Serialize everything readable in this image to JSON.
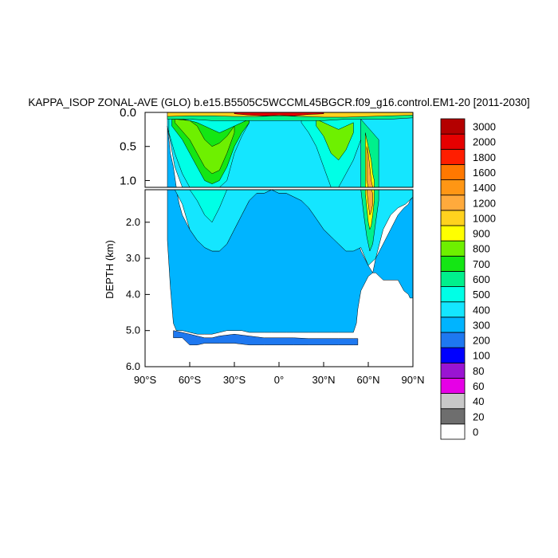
{
  "chart_data": {
    "type": "heatmap",
    "title": "KAPPA_ISOP ZONAL-AVE (GLO) b.e15.B5505C5WCCML45BGCR.f09_g16.control.EM1-20 [2011-2030]",
    "xlabel": "",
    "ylabel": "DEPTH (km)",
    "x_ticks": [
      "90°S",
      "60°S",
      "30°S",
      "0°",
      "30°N",
      "60°N",
      "90°N"
    ],
    "x_tick_values": [
      -90,
      -60,
      -30,
      0,
      30,
      60,
      90
    ],
    "xlim": [
      -90,
      90
    ],
    "y_ticks_upper": [
      "0.0",
      "0.5",
      "1.0"
    ],
    "y_tick_values_upper": [
      0.0,
      0.5,
      1.0
    ],
    "y_ticks_lower": [
      "2.0",
      "3.0",
      "4.0",
      "5.0",
      "6.0"
    ],
    "y_tick_values_lower": [
      2.0,
      3.0,
      4.0,
      5.0,
      6.0
    ],
    "ylim_upper": [
      1.1,
      0.0
    ],
    "ylim_lower": [
      6.0,
      1.1
    ],
    "contour_levels": [
      "0",
      "20",
      "40",
      "60",
      "80",
      "100",
      "200",
      "300",
      "400",
      "500",
      "600",
      "700",
      "800",
      "900",
      "1000",
      "1200",
      "1400",
      "1600",
      "1800",
      "2000",
      "3000"
    ],
    "colors": [
      "#ffffff",
      "#6e6e6e",
      "#c8c8c8",
      "#e600e6",
      "#9a14d2",
      "#0000ff",
      "#1e78f0",
      "#00b4ff",
      "#14e6ff",
      "#00ffe6",
      "#00f08c",
      "#14e614",
      "#6ef000",
      "#ffff00",
      "#ffd21e",
      "#ffaa3c",
      "#ff9614",
      "#ff7800",
      "#ff1e00",
      "#e60000",
      "#b40000"
    ],
    "regions": [
      {
        "name": "deep-ocean-300",
        "level_index": 7,
        "lat": [
          -75,
          -73,
          -71,
          -69,
          -67,
          -65,
          -60,
          -55,
          -50,
          -45,
          -40,
          -35,
          -30,
          -25,
          -20,
          -15,
          -10,
          -5,
          0,
          5,
          10,
          15,
          20,
          25,
          30,
          35,
          40,
          45,
          50,
          52,
          53,
          55,
          60,
          63,
          65,
          70,
          75,
          80,
          84,
          87,
          88,
          90
        ],
        "top": [
          0.2,
          0.6,
          0.8,
          1.1,
          1.5,
          1.8,
          2.2,
          2.5,
          2.7,
          2.8,
          2.8,
          2.6,
          2.2,
          1.8,
          1.4,
          1.2,
          1.2,
          1.1,
          1.2,
          1.2,
          1.3,
          1.4,
          1.6,
          1.9,
          2.2,
          2.4,
          2.6,
          2.8,
          2.7,
          2.6,
          2.5,
          2.8,
          3.2,
          3.4,
          3.0,
          2.6,
          2.2,
          1.8,
          1.6,
          1.5,
          1.4,
          1.3
        ],
        "bottom": [
          2.5,
          3.8,
          4.8,
          5.0,
          5.0,
          5.0,
          5.05,
          5.1,
          5.1,
          5.1,
          5.05,
          5.0,
          5.0,
          5.0,
          5.05,
          5.05,
          5.05,
          5.05,
          5.05,
          5.05,
          5.05,
          5.05,
          5.05,
          5.05,
          5.05,
          5.05,
          5.05,
          5.05,
          5.05,
          4.8,
          4.4,
          3.9,
          3.5,
          3.4,
          3.4,
          3.6,
          3.6,
          3.6,
          3.9,
          4.0,
          4.1,
          4.1
        ]
      },
      {
        "name": "abyssal-200",
        "level_index": 6,
        "lat": [
          -71,
          -65,
          -60,
          -55,
          -50,
          -45,
          -40,
          -30,
          -20,
          -10,
          0,
          10,
          20,
          30,
          40,
          50,
          53
        ],
        "top": [
          5.0,
          5.05,
          5.1,
          5.15,
          5.2,
          5.2,
          5.15,
          5.1,
          5.15,
          5.2,
          5.2,
          5.2,
          5.22,
          5.22,
          5.22,
          5.22,
          5.22
        ],
        "bottom": [
          5.2,
          5.2,
          5.4,
          5.4,
          5.35,
          5.35,
          5.35,
          5.35,
          5.4,
          5.4,
          5.4,
          5.4,
          5.4,
          5.4,
          5.4,
          5.4,
          5.4
        ]
      },
      {
        "name": "upper-ocean-400",
        "level_index": 8,
        "lat": [
          -75,
          -70,
          -65,
          -60,
          -55,
          -50,
          -45,
          -40,
          -35,
          -30,
          -25,
          -20,
          -15,
          -10,
          -5,
          0,
          5,
          10,
          15,
          20,
          25,
          30,
          35,
          40,
          45,
          50,
          55,
          60,
          65,
          70,
          75,
          80,
          85,
          90
        ],
        "top": [
          0.05,
          0.05,
          0.05,
          0.05,
          0.05,
          0.05,
          0.05,
          0.05,
          0.05,
          0.05,
          0.05,
          0.05,
          0.05,
          0.05,
          0.05,
          0.05,
          0.05,
          0.05,
          0.05,
          0.05,
          0.05,
          0.05,
          0.05,
          0.05,
          0.05,
          0.05,
          0.05,
          0.05,
          0.05,
          0.05,
          0.05,
          0.05,
          0.05,
          0.05
        ],
        "bottom": [
          0.2,
          0.8,
          1.5,
          2.2,
          2.5,
          2.7,
          2.8,
          2.8,
          2.6,
          2.2,
          1.8,
          1.4,
          1.2,
          1.2,
          1.1,
          1.2,
          1.2,
          1.3,
          1.4,
          1.6,
          1.9,
          2.2,
          2.4,
          2.6,
          2.8,
          2.8,
          2.7,
          3.2,
          3.0,
          2.2,
          1.8,
          1.6,
          1.5,
          1.3
        ]
      },
      {
        "name": "southern-500",
        "level_index": 9,
        "lat": [
          -74,
          -70,
          -65,
          -60,
          -55,
          -50,
          -45,
          -40,
          -35,
          -30,
          -25,
          -20
        ],
        "top": [
          0.08,
          0.08,
          0.08,
          0.08,
          0.08,
          0.08,
          0.08,
          0.08,
          0.08,
          0.08,
          0.08,
          0.08
        ],
        "bottom": [
          0.3,
          0.6,
          0.9,
          1.1,
          1.4,
          1.8,
          2.0,
          1.6,
          1.0,
          0.6,
          0.35,
          0.15
        ]
      },
      {
        "name": "southern-green-700",
        "level_index": 11,
        "lat": [
          -72,
          -65,
          -60,
          -55,
          -50,
          -45,
          -40,
          -35,
          -30,
          -25,
          -20
        ],
        "top": [
          0.1,
          0.1,
          0.12,
          0.15,
          0.2,
          0.25,
          0.3,
          0.25,
          0.2,
          0.15,
          0.1
        ],
        "bottom": [
          0.2,
          0.4,
          0.6,
          0.8,
          1.0,
          1.05,
          1.0,
          0.8,
          0.5,
          0.3,
          0.15
        ]
      },
      {
        "name": "southern-800",
        "level_index": 12,
        "lat": [
          -70,
          -60,
          -55,
          -50,
          -45,
          -40,
          -35,
          -30
        ],
        "top": [
          0.1,
          0.12,
          0.2,
          0.4,
          0.5,
          0.45,
          0.35,
          0.2
        ],
        "bottom": [
          0.15,
          0.4,
          0.6,
          0.8,
          0.9,
          0.85,
          0.6,
          0.3
        ]
      },
      {
        "name": "northern-500",
        "level_index": 9,
        "lat": [
          15,
          20,
          25,
          30,
          35,
          40,
          45,
          50,
          55
        ],
        "top": [
          0.08,
          0.08,
          0.08,
          0.08,
          0.08,
          0.08,
          0.08,
          0.08,
          0.08
        ],
        "bottom": [
          0.15,
          0.3,
          0.5,
          0.8,
          1.1,
          1.1,
          0.9,
          0.7,
          0.4
        ]
      },
      {
        "name": "northern-800",
        "level_index": 12,
        "lat": [
          25,
          30,
          35,
          40,
          45,
          50
        ],
        "top": [
          0.1,
          0.15,
          0.2,
          0.25,
          0.2,
          0.15
        ],
        "bottom": [
          0.2,
          0.35,
          0.6,
          0.7,
          0.55,
          0.3
        ]
      },
      {
        "name": "nadw-600",
        "level_index": 10,
        "lat": [
          55,
          57,
          59,
          61,
          63,
          65,
          67
        ],
        "top": [
          0.1,
          0.15,
          0.2,
          0.25,
          0.3,
          0.35,
          0.4
        ],
        "bottom": [
          1.1,
          1.8,
          2.4,
          2.8,
          2.6,
          2.0,
          1.4
        ]
      },
      {
        "name": "nadw-900",
        "level_index": 13,
        "lat": [
          58,
          59,
          60,
          61,
          62,
          63,
          64
        ],
        "top": [
          0.3,
          0.4,
          0.5,
          0.6,
          0.7,
          0.9,
          1.0
        ],
        "bottom": [
          1.2,
          1.6,
          2.0,
          2.2,
          2.1,
          1.8,
          1.4
        ]
      },
      {
        "name": "nadw-1200",
        "level_index": 15,
        "lat": [
          59,
          60,
          61,
          62,
          63
        ],
        "top": [
          0.5,
          0.6,
          0.8,
          1.0,
          1.2
        ],
        "bottom": [
          1.0,
          1.5,
          1.8,
          1.7,
          1.5
        ]
      },
      {
        "name": "surface-600",
        "level_index": 10,
        "lat": [
          -75,
          -60,
          -45,
          -30,
          -15,
          0,
          15,
          30,
          45,
          60,
          75,
          90
        ],
        "top": [
          0.0,
          0.0,
          0.0,
          0.0,
          0.0,
          0.0,
          0.0,
          0.0,
          0.0,
          0.0,
          0.0,
          0.0
        ],
        "bottom": [
          0.1,
          0.1,
          0.12,
          0.12,
          0.12,
          0.12,
          0.12,
          0.12,
          0.1,
          0.1,
          0.1,
          0.08
        ]
      },
      {
        "name": "surface-1000",
        "level_index": 14,
        "lat": [
          -75,
          -60,
          -45,
          -30,
          -15,
          0,
          15,
          30,
          45,
          60,
          75,
          90
        ],
        "top": [
          0.0,
          0.0,
          0.0,
          0.0,
          0.0,
          0.0,
          0.0,
          0.0,
          0.0,
          0.0,
          0.0,
          0.0
        ],
        "bottom": [
          0.06,
          0.05,
          0.05,
          0.06,
          0.06,
          0.05,
          0.06,
          0.07,
          0.07,
          0.06,
          0.05,
          0.04
        ]
      },
      {
        "name": "surface-2000",
        "level_index": 19,
        "lat": [
          -30,
          -20,
          -10,
          0,
          10,
          20,
          30
        ],
        "top": [
          0.0,
          0.0,
          0.0,
          0.0,
          0.0,
          0.0,
          0.0
        ],
        "bottom": [
          0.02,
          0.04,
          0.05,
          0.04,
          0.05,
          0.03,
          0.02
        ]
      }
    ]
  }
}
